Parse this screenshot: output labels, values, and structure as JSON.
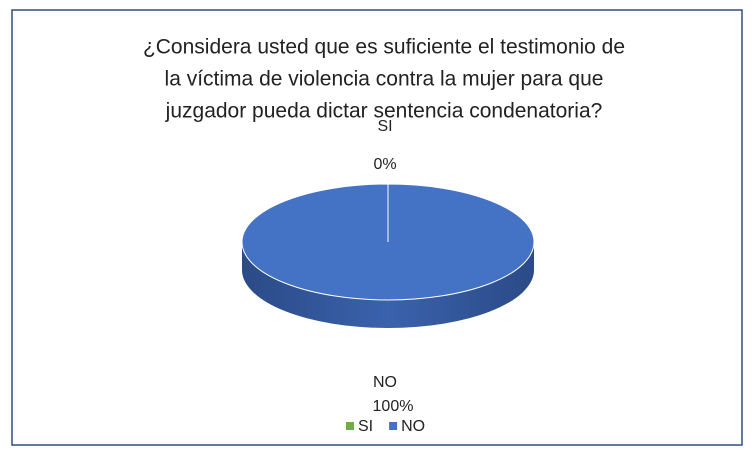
{
  "chart_data": {
    "type": "pie3d",
    "title": [
      "¿Considera usted que es suficiente el testimonio de",
      "la víctima de violencia contra la mujer para que",
      "juzgador pueda dictar sentencia condenatoria?"
    ],
    "categories": [
      "SI",
      "NO"
    ],
    "values": [
      0,
      100
    ],
    "value_labels": [
      "0%",
      "100%"
    ],
    "colors": [
      "#70ad47",
      "#4472c4"
    ],
    "legend": "bottom"
  }
}
